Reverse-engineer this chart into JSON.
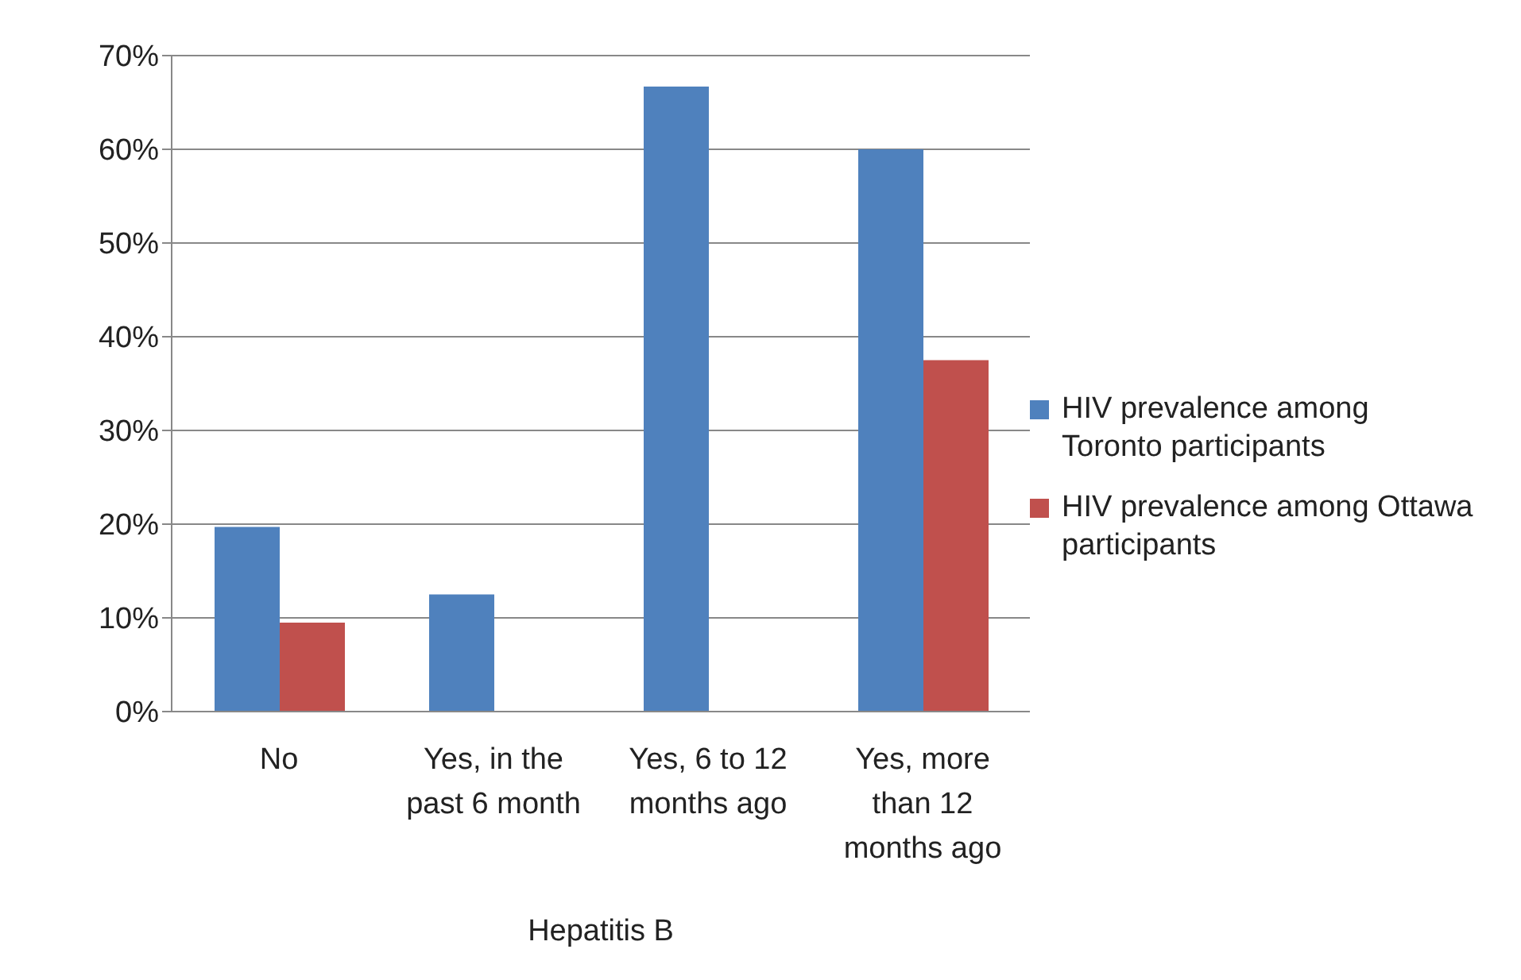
{
  "chart_data": {
    "type": "bar",
    "categories": [
      "No",
      "Yes, in the past 6 month",
      "Yes, 6 to 12 months ago",
      "Yes, more than 12 months ago"
    ],
    "xlabel": "Hepatitis B",
    "series": [
      {
        "name": "HIV prevalence among Toronto participants",
        "color": "#4f81bd",
        "values": [
          19.7,
          12.5,
          66.7,
          60
        ]
      },
      {
        "name": "HIV prevalence among Ottawa participants",
        "color": "#c0504d",
        "values": [
          9.5,
          0,
          0,
          37.5
        ]
      }
    ],
    "ylim": [
      0,
      70
    ],
    "yticks": [
      {
        "value": 0,
        "label": "0%"
      },
      {
        "value": 10,
        "label": "10%"
      },
      {
        "value": 20,
        "label": "20%"
      },
      {
        "value": 30,
        "label": "30%"
      },
      {
        "value": 40,
        "label": "40%"
      },
      {
        "value": 50,
        "label": "50%"
      },
      {
        "value": 60,
        "label": "60%"
      },
      {
        "value": 70,
        "label": "70%"
      }
    ],
    "grid": "y",
    "legend": "right"
  }
}
